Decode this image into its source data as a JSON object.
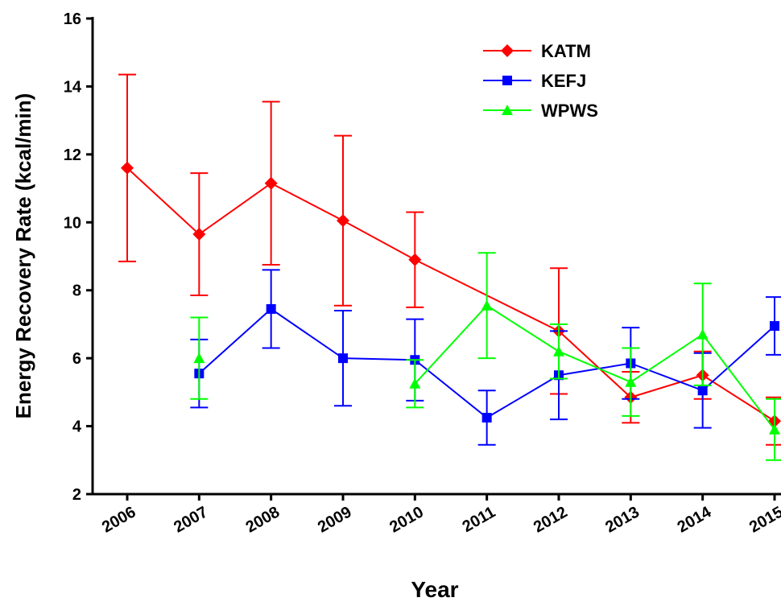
{
  "chart_data": {
    "type": "line",
    "x_label": "Year",
    "y_label": "Energy Recovery Rate (kcal/min)",
    "xlim": [
      2006,
      2015
    ],
    "xticks": [
      2006,
      2007,
      2008,
      2009,
      2010,
      2011,
      2012,
      2013,
      2014,
      2015
    ],
    "ylim": [
      2,
      16
    ],
    "yticks": [
      2,
      4,
      6,
      8,
      10,
      12,
      14,
      16
    ],
    "legend": "upper right",
    "series": [
      {
        "name": "KATM",
        "color": "#ff0000",
        "marker": "diamond",
        "x": [
          2006,
          2007,
          2008,
          2009,
          2010,
          2012,
          2013,
          2014,
          2015
        ],
        "values": [
          11.6,
          9.65,
          11.15,
          10.05,
          8.9,
          6.8,
          4.85,
          5.5,
          4.15
        ],
        "errors": [
          2.75,
          1.8,
          2.4,
          2.5,
          1.4,
          1.85,
          0.75,
          0.7,
          0.7
        ]
      },
      {
        "name": "KEFJ",
        "color": "#0000ff",
        "marker": "square",
        "x": [
          2007,
          2008,
          2009,
          2010,
          2011,
          2012,
          2013,
          2014,
          2015
        ],
        "values": [
          5.55,
          7.45,
          6.0,
          5.95,
          4.25,
          5.5,
          5.85,
          5.05,
          6.95
        ],
        "errors": [
          1.0,
          1.15,
          1.4,
          1.2,
          0.8,
          1.3,
          1.05,
          1.1,
          0.85
        ]
      },
      {
        "name": "WPWS",
        "color": "#00ff00",
        "marker": "triangle",
        "x": [
          2007,
          2008,
          2009,
          2010,
          2011,
          2012,
          2013,
          2014,
          2015
        ],
        "values": [
          6.0,
          null,
          null,
          5.25,
          7.55,
          6.2,
          5.3,
          6.7,
          3.9
        ],
        "errors": [
          1.2,
          null,
          null,
          0.7,
          1.55,
          0.8,
          1.0,
          1.5,
          0.9
        ]
      }
    ]
  }
}
